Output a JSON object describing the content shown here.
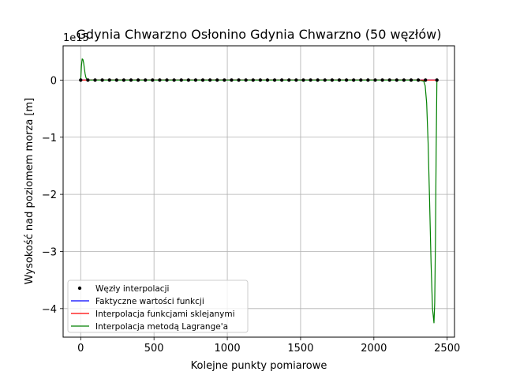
{
  "chart_data": {
    "type": "line",
    "title": "Gdynia Chwarzno Osłonino Gdynia Chwarzno (50 węzłów)",
    "xlabel": "Kolejne punkty pomiarowe",
    "ylabel": "Wysokość nad poziomem morza [m]",
    "y_offset_text": "1e15",
    "xlim": [
      -120,
      2550
    ],
    "ylim": [
      -4.5,
      0.6
    ],
    "x_ticks": [
      0,
      500,
      1000,
      1500,
      2000,
      2500
    ],
    "x_tick_labels": [
      "0",
      "500",
      "1000",
      "1500",
      "2000",
      "2500"
    ],
    "y_ticks": [
      0,
      -1,
      -2,
      -3,
      -4
    ],
    "y_tick_labels": [
      "0",
      "−1",
      "−2",
      "−3",
      "−4"
    ],
    "grid": true,
    "legend_position": "lower-left",
    "legend": [
      {
        "label": "Węzły interpolacji",
        "marker": "dot",
        "color": "#000000"
      },
      {
        "label": "Faktyczne wartości funkcji",
        "marker": "line",
        "color": "#0000ff"
      },
      {
        "label": "Interpolacja funkcjami sklejanymi",
        "marker": "line",
        "color": "#ff0000"
      },
      {
        "label": "Interpolacja metodą Lagrange'a",
        "marker": "line",
        "color": "#008000"
      }
    ],
    "series": [
      {
        "name": "Węzły interpolacji",
        "kind": "scatter",
        "color": "#000000",
        "x": [
          0,
          49,
          98,
          147,
          196,
          245,
          294,
          343,
          392,
          441,
          490,
          539,
          588,
          637,
          686,
          735,
          784,
          833,
          882,
          931,
          980,
          1029,
          1078,
          1127,
          1176,
          1225,
          1274,
          1323,
          1372,
          1421,
          1470,
          1519,
          1568,
          1617,
          1666,
          1715,
          1764,
          1813,
          1862,
          1911,
          1960,
          2009,
          2058,
          2107,
          2156,
          2205,
          2254,
          2303,
          2352,
          2430
        ],
        "y": [
          0,
          0,
          0,
          0,
          0,
          0,
          0,
          0,
          0,
          0,
          0,
          0,
          0,
          0,
          0,
          0,
          0,
          0,
          0,
          0,
          0,
          0,
          0,
          0,
          0,
          0,
          0,
          0,
          0,
          0,
          0,
          0,
          0,
          0,
          0,
          0,
          0,
          0,
          0,
          0,
          0,
          0,
          0,
          0,
          0,
          0,
          0,
          0,
          0,
          0
        ]
      },
      {
        "name": "Faktyczne wartości funkcji",
        "kind": "line",
        "color": "#0000ff",
        "x": [
          0,
          2430
        ],
        "y": [
          0,
          0
        ]
      },
      {
        "name": "Interpolacja funkcjami sklejanymi",
        "kind": "line",
        "color": "#ff0000",
        "x": [
          0,
          2430
        ],
        "y": [
          0,
          0
        ]
      },
      {
        "name": "Interpolacja metodą Lagrange'a",
        "kind": "line",
        "color": "#008000",
        "x": [
          0,
          5,
          10,
          15,
          20,
          25,
          30,
          35,
          40,
          45,
          50,
          60,
          80,
          100,
          2300,
          2340,
          2350,
          2360,
          2370,
          2380,
          2390,
          2400,
          2410,
          2415,
          2420,
          2425,
          2430
        ],
        "y": [
          0,
          0.25,
          0.37,
          0.36,
          0.3,
          0.2,
          0.11,
          0.05,
          0.02,
          0.0,
          -0.01,
          0,
          0,
          0,
          0,
          -0.02,
          -0.1,
          -0.4,
          -1.1,
          -2.1,
          -3.2,
          -4.0,
          -4.25,
          -3.9,
          -2.8,
          -1.2,
          0
        ]
      }
    ]
  }
}
